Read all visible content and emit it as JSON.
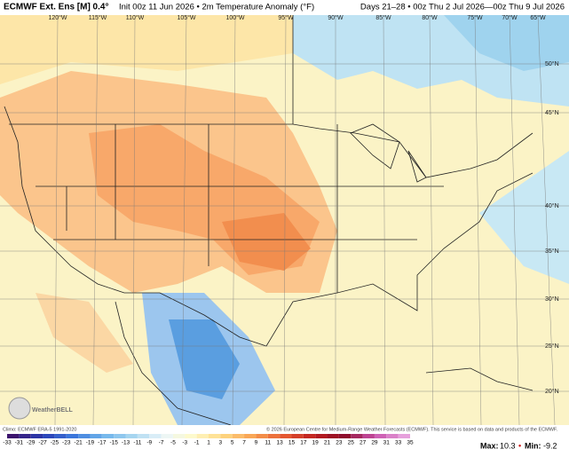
{
  "header": {
    "title": "ECMWF Ext. Ens [M] 0.4°",
    "subtitle": "Init 00z 11 Jun 2026 • 2m Temperature Anomaly (°F)",
    "valid": "Days 21–28 • 00z Thu 2 Jul 2026—00z Thu 9 Jul 2026"
  },
  "map": {
    "lon_labels": [
      "120°W",
      "115°W",
      "110°W",
      "105°W",
      "100°W",
      "95°W",
      "90°W",
      "85°W",
      "80°W",
      "75°W",
      "70°W",
      "65°W"
    ],
    "lat_labels": [
      "50°N",
      "45°N",
      "40°N",
      "35°N",
      "30°N",
      "25°N",
      "20°N"
    ],
    "logo": "WeatherBELL"
  },
  "footer": {
    "climo": "Climo: ECMWF ERA-5 1991-2020",
    "credit": "© 2026 European Centre for Medium-Range Weather Forecasts (ECMWF). This service is based on data and products of the ECMWF.",
    "colorbar": [
      -33,
      -31,
      -29,
      -27,
      -25,
      -23,
      -21,
      -19,
      -17,
      -15,
      -13,
      -11,
      -9,
      -7,
      -5,
      -3,
      -1,
      1,
      3,
      5,
      7,
      9,
      11,
      13,
      15,
      17,
      19,
      21,
      23,
      25,
      27,
      29,
      31,
      33,
      35
    ],
    "max_label": "Max:",
    "max": 10.3,
    "min_label": "Min:",
    "min": -9.2
  }
}
